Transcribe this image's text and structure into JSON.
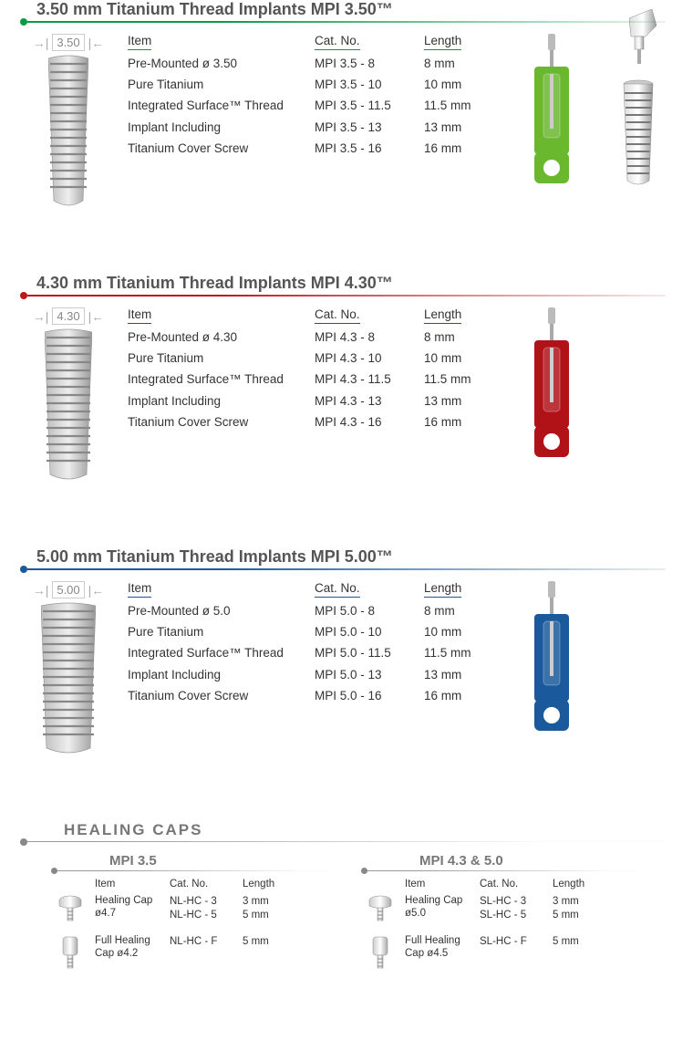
{
  "sections": [
    {
      "title": "3.50 mm Titanium Thread Implants MPI 3.50™",
      "dim": "3.50",
      "color": "#0a9b47",
      "tool_color": "#6ab82e",
      "headers": {
        "item": "Item",
        "cat": "Cat. No.",
        "length": "Length"
      },
      "items": [
        "Pre-Mounted ø 3.50",
        "Pure Titanium",
        "Integrated Surface™ Thread",
        "Implant Including",
        "Titanium Cover Screw"
      ],
      "cats": [
        "MPI 3.5 - 8",
        "MPI 3.5 - 10",
        "MPI 3.5 - 11.5",
        "MPI 3.5 - 13",
        "MPI 3.5 - 16"
      ],
      "lens": [
        "8 mm",
        "10 mm",
        "11.5 mm",
        "13 mm",
        "16 mm"
      ]
    },
    {
      "title": "4.30 mm Titanium Thread Implants MPI 4.30™",
      "dim": "4.30",
      "color": "#c0171b",
      "tool_color": "#b01218",
      "headers": {
        "item": "Item",
        "cat": "Cat. No.",
        "length": "Length"
      },
      "items": [
        "Pre-Mounted ø 4.30",
        "Pure Titanium",
        "Integrated Surface™ Thread",
        "Implant Including",
        "Titanium Cover Screw"
      ],
      "cats": [
        "MPI 4.3 - 8",
        "MPI 4.3 - 10",
        "MPI 4.3 - 11.5",
        "MPI 4.3 - 13",
        "MPI 4.3 - 16"
      ],
      "lens": [
        "8 mm",
        "10 mm",
        "11.5 mm",
        "13 mm",
        "16 mm"
      ]
    },
    {
      "title": "5.00 mm Titanium Thread Implants MPI 5.00™",
      "dim": "5.00",
      "color": "#1a5a9c",
      "tool_color": "#1a5a9c",
      "headers": {
        "item": "Item",
        "cat": "Cat. No.",
        "length": "Length"
      },
      "items": [
        "Pre-Mounted ø 5.0",
        "Pure Titanium",
        "Integrated Surface™ Thread",
        "Implant Including",
        "Titanium Cover Screw"
      ],
      "cats": [
        "MPI 5.0 - 8",
        "MPI 5.0 - 10",
        "MPI 5.0 - 11.5",
        "MPI 5.0 - 13",
        "MPI 5.0 - 16"
      ],
      "lens": [
        "8 mm",
        "10 mm",
        "11.5 mm",
        "13 mm",
        "16 mm"
      ]
    }
  ],
  "healing": {
    "title": "HEALING CAPS",
    "headers": {
      "item": "Item",
      "cat": "Cat. No.",
      "length": "Length"
    },
    "groups": [
      {
        "label": "MPI 3.5",
        "rows": [
          {
            "item": "Healing Cap ø4.7",
            "cats": [
              "NL-HC - 3",
              "NL-HC - 5"
            ],
            "lens": [
              "3 mm",
              "5 mm"
            ],
            "shape": "short"
          },
          {
            "item": "Full Healing Cap ø4.2",
            "cats": [
              "NL-HC - F"
            ],
            "lens": [
              "5 mm"
            ],
            "shape": "tall"
          }
        ]
      },
      {
        "label": "MPI 4.3 & 5.0",
        "rows": [
          {
            "item": "Healing Cap ø5.0",
            "cats": [
              "SL-HC - 3",
              "SL-HC - 5"
            ],
            "lens": [
              "3 mm",
              "5 mm"
            ],
            "shape": "short"
          },
          {
            "item": "Full Healing Cap ø4.5",
            "cats": [
              "SL-HC - F"
            ],
            "lens": [
              "5 mm"
            ],
            "shape": "tall"
          }
        ]
      }
    ]
  },
  "style": {
    "title_color": "#555",
    "text_color": "#333",
    "body_font_size": 13.5,
    "title_font_size": 18
  }
}
